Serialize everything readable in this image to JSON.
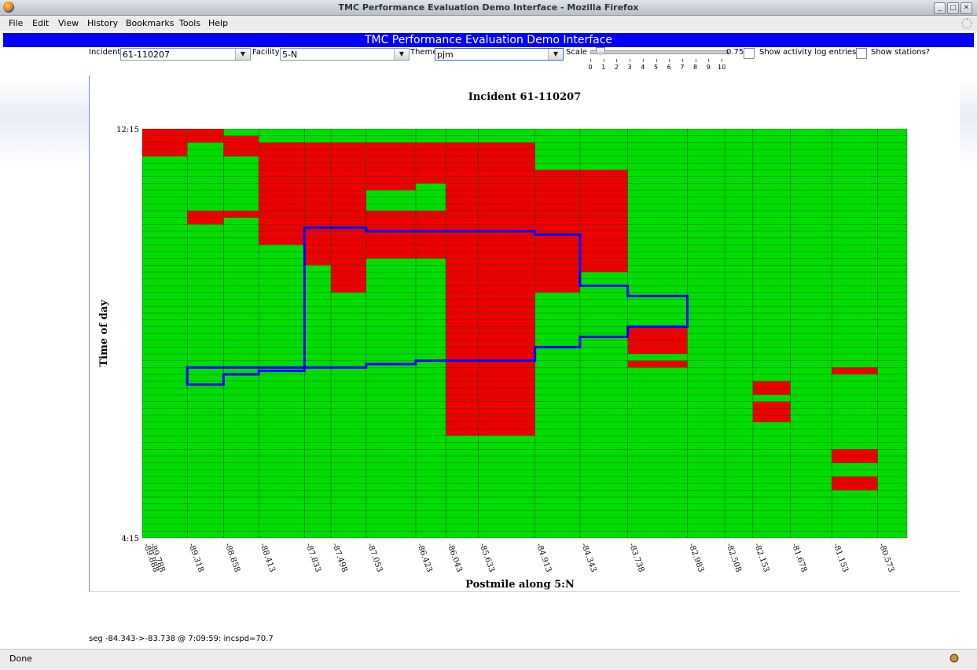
{
  "window": {
    "title": "TMC Performance Evaluation Demo Interface - Mozilla Firefox"
  },
  "menu": [
    "File",
    "Edit",
    "View",
    "History",
    "Bookmarks",
    "Tools",
    "Help"
  ],
  "app": {
    "header": "TMC Performance Evaluation Demo Interface",
    "incident_label": "Incident:",
    "incident_value": "61-110207",
    "facility_label": "Facility:",
    "facility_value": "5-N",
    "theme_label": "Theme",
    "theme_value": "pjm",
    "scale_label": "Scale",
    "scale_value": "0.75",
    "scale_ticks": [
      "0",
      "1",
      "2",
      "3",
      "4",
      "5",
      "6",
      "7",
      "8",
      "9",
      "10"
    ],
    "activity_label": "Show activity log entries?",
    "stations_label": "Show stations?"
  },
  "status_text": "seg -84.343->-83.738 @ 7:09:59: incspd=70.7",
  "statusbar": {
    "done": "Done"
  },
  "colors": {
    "congested": "#ee0000",
    "free": "#00dd00",
    "incident_outline": "#0000ff",
    "header": "#0000ff"
  },
  "chart_data": {
    "type": "heatmap",
    "title": "Incident 61-110207",
    "xlabel": "Postmile along 5:N",
    "ylabel": "Time of day",
    "y_range": [
      "12:15",
      "4:15"
    ],
    "rows": 60,
    "column_labels": [
      "-89.788",
      "-89.888",
      "-89.318",
      "-88.858",
      "-88.413",
      "-87.833",
      "-87.498",
      "-87.053",
      "-86.423",
      "-86.043",
      "-85.633",
      "-84.913",
      "-84.343",
      "-83.738",
      "-82.983",
      "-82.508",
      "-82.153",
      "-81.678",
      "-81.153",
      "-80.573"
    ],
    "column_edges": [
      -89.888,
      -89.318,
      -88.858,
      -88.413,
      -87.833,
      -87.498,
      -87.053,
      -86.423,
      -86.043,
      -85.633,
      -84.913,
      -84.343,
      -83.738,
      -82.983,
      -82.508,
      -82.153,
      -81.678,
      -81.153,
      -80.573,
      -80.2
    ],
    "congested_cells": [
      [
        0,
        0,
        3
      ],
      [
        1,
        0,
        1
      ],
      [
        0,
        1,
        2
      ],
      [
        0,
        2,
        2
      ],
      [
        0,
        3,
        1
      ],
      [
        0,
        4,
        1
      ],
      [
        0,
        5,
        0
      ],
      [
        2,
        1,
        3
      ],
      [
        2,
        6,
        3
      ],
      [
        3,
        2,
        16
      ],
      [
        4,
        2,
        19
      ],
      [
        5,
        2,
        15
      ],
      [
        6,
        2,
        8
      ],
      [
        7,
        2,
        5
      ],
      [
        7,
        3,
        7
      ],
      [
        8,
        2,
        13
      ],
      [
        9,
        2,
        14
      ],
      [
        10,
        2,
        1
      ],
      [
        10,
        6,
        23
      ],
      [
        11,
        6,
        7
      ],
      [
        11,
        7,
        20
      ],
      [
        11,
        8,
        3
      ],
      [
        11,
        9,
        0
      ],
      [
        11,
        10,
        0
      ],
      [
        1,
        12,
        13
      ],
      [
        1,
        13,
        1
      ],
      [
        2,
        12,
        12
      ],
      [
        3,
        12,
        12
      ],
      [
        4,
        12,
        12
      ],
      [
        5,
        12,
        18
      ],
      [
        6,
        12,
        18
      ],
      [
        7,
        12,
        18
      ],
      [
        8,
        12,
        18
      ],
      [
        9,
        12,
        18
      ],
      [
        10,
        12,
        18
      ],
      [
        3,
        11,
        11
      ],
      [
        3,
        13,
        0
      ],
      [
        4,
        11,
        11
      ],
      [
        4,
        13,
        0
      ],
      [
        5,
        12,
        1
      ],
      [
        5,
        9,
        13
      ],
      [
        5,
        6,
        23
      ],
      [
        5,
        5,
        0
      ],
      [
        8,
        17,
        43
      ],
      [
        8,
        18,
        44
      ],
      [
        9,
        17,
        43
      ],
      [
        9,
        18,
        44
      ],
      [
        9,
        19,
        44
      ],
      [
        12,
        29,
        31
      ],
      [
        12,
        34,
        34
      ],
      [
        12,
        32,
        32
      ],
      [
        15,
        37,
        38
      ],
      [
        15,
        40,
        42
      ],
      [
        17,
        35,
        35
      ],
      [
        17,
        47,
        48
      ],
      [
        17,
        51,
        52
      ]
    ]
  }
}
